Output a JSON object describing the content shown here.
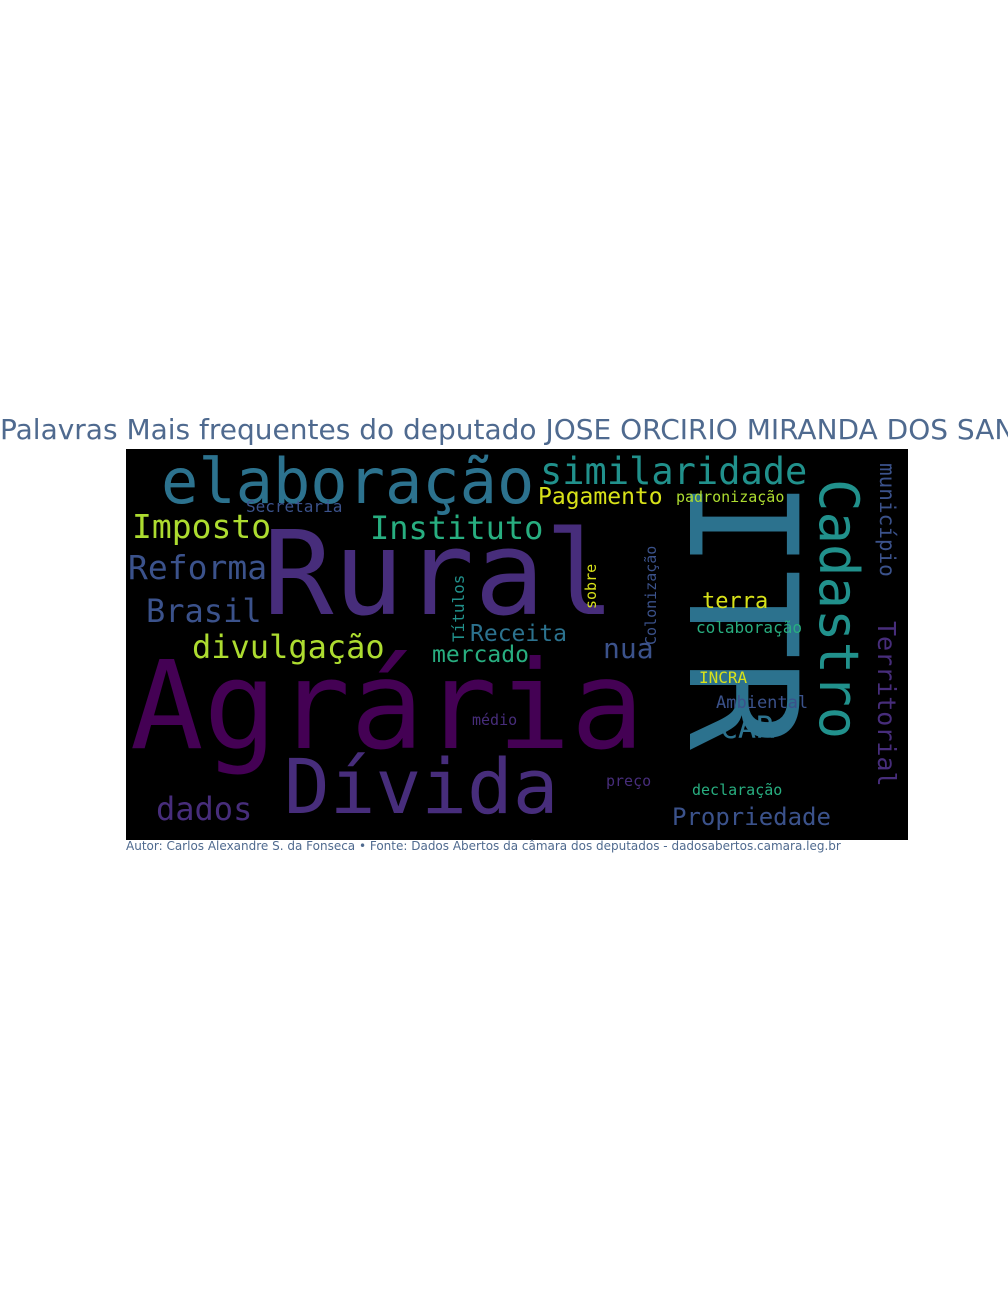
{
  "title": "Palavras Mais frequentes do deputado JOSE ORCIRIO MIRANDA DOS SANTOS",
  "footer": "Autor: Carlos Alexandre S. da Fonseca • Fonte: Dados Abertos da câmara dos deputados - dadosabertos.camara.leg.br",
  "colors": {
    "text": "#4f6a8f",
    "background": "#000000",
    "deep_purple": "#440154",
    "purple": "#472d7b",
    "indigo": "#3b528b",
    "teal": "#2c728e",
    "cyan": "#21918c",
    "green": "#28ae80",
    "light_green": "#5ec962",
    "lime": "#addc30",
    "yellow": "#d8e219"
  },
  "words": [
    {
      "text": "Rural"
    },
    {
      "text": "Agrária"
    },
    {
      "text": "ITR"
    },
    {
      "text": "elaboração"
    },
    {
      "text": "Dívida"
    },
    {
      "text": "Cadastro"
    },
    {
      "text": "similaridade"
    },
    {
      "text": "Territorial"
    },
    {
      "text": "Imposto"
    },
    {
      "text": "Instituto"
    },
    {
      "text": "Reforma"
    },
    {
      "text": "Brasil"
    },
    {
      "text": "divulgação"
    },
    {
      "text": "dados"
    },
    {
      "text": "Propriedade"
    },
    {
      "text": "CAR"
    },
    {
      "text": "Pagamento"
    },
    {
      "text": "município"
    },
    {
      "text": "nua"
    },
    {
      "text": "Receita"
    },
    {
      "text": "mercado"
    },
    {
      "text": "terra"
    },
    {
      "text": "colaboração"
    },
    {
      "text": "Ambiental"
    },
    {
      "text": "INCRA"
    },
    {
      "text": "declaração"
    },
    {
      "text": "Secretaria"
    },
    {
      "text": "padronização"
    },
    {
      "text": "Títulos"
    },
    {
      "text": "sobre"
    },
    {
      "text": "Colonização"
    },
    {
      "text": "médio"
    },
    {
      "text": "preço"
    }
  ]
}
